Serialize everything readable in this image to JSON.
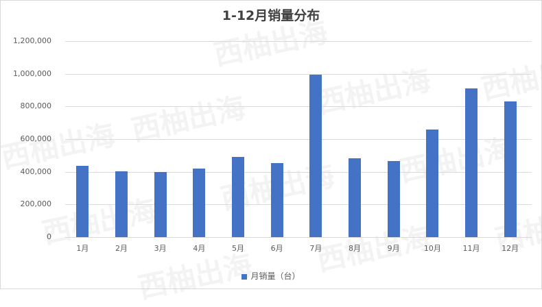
{
  "chart_data": {
    "type": "bar",
    "title": "1-12月销量分布",
    "xlabel": "",
    "ylabel": "",
    "categories": [
      "1月",
      "2月",
      "3月",
      "4月",
      "5月",
      "6月",
      "7月",
      "8月",
      "9月",
      "10月",
      "11月",
      "12月"
    ],
    "series": [
      {
        "name": "月销量（台）",
        "color": "#4472c4",
        "values": [
          435000,
          403000,
          399000,
          420000,
          491000,
          453000,
          995000,
          483000,
          466000,
          659000,
          911000,
          831000
        ]
      }
    ],
    "ylim": [
      0,
      1200000
    ],
    "yticks": [
      "0",
      "200,000",
      "400,000",
      "600,000",
      "800,000",
      "1,000,000",
      "1,200,000"
    ],
    "grid": true,
    "legend_position": "bottom"
  },
  "watermark": "西柚出海"
}
